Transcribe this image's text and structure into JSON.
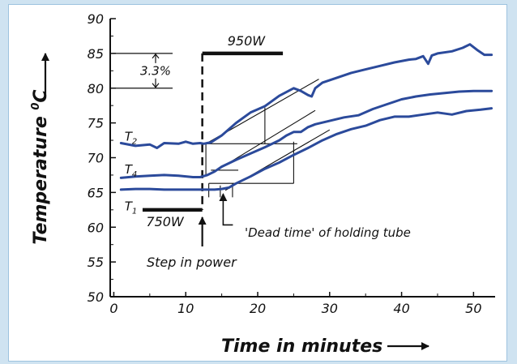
{
  "chart_data": {
    "type": "line",
    "title": "",
    "xlabel": "Time in minutes",
    "ylabel": "Temperature",
    "ylabel_unit": "0C",
    "xlim": [
      -0.5,
      53
    ],
    "ylim": [
      50,
      90
    ],
    "xticks": [
      "0",
      "10",
      "20",
      "30",
      "40",
      "50"
    ],
    "yticks": [
      "50",
      "55",
      "60",
      "65",
      "70",
      "75",
      "80",
      "85",
      "90"
    ],
    "grid": false,
    "series": [
      {
        "name": "T2",
        "label_main": "T",
        "label_sub": "2",
        "color": "#2b4a9b",
        "x": [
          1.0,
          3,
          5,
          6,
          7,
          9,
          10,
          11,
          12,
          12.5,
          13.5,
          15,
          17,
          19,
          21,
          23,
          25,
          26,
          27,
          27.5,
          28,
          29,
          31,
          33,
          35,
          37,
          39,
          41,
          42,
          43,
          43.7,
          44.2,
          45,
          47,
          48.5,
          49.5,
          50.5,
          51.5,
          52.5
        ],
        "y": [
          72.1,
          71.7,
          71.9,
          71.4,
          72.1,
          72.0,
          72.3,
          72.0,
          72.1,
          72.0,
          72.2,
          73.2,
          75.0,
          76.5,
          77.4,
          78.9,
          80.0,
          79.6,
          79.0,
          78.8,
          80.0,
          80.8,
          81.5,
          82.2,
          82.7,
          83.2,
          83.7,
          84.1,
          84.2,
          84.6,
          83.5,
          84.7,
          85.0,
          85.3,
          85.8,
          86.3,
          85.5,
          84.8,
          84.8
        ]
      },
      {
        "name": "T4",
        "label_main": "T",
        "label_sub": "4",
        "color": "#2b4a9b",
        "x": [
          1.0,
          3,
          5,
          7,
          9,
          11,
          12,
          13,
          14,
          15,
          17,
          19,
          21,
          23,
          24,
          25,
          26,
          27,
          28,
          30,
          32,
          34,
          36,
          38,
          40,
          42,
          44,
          46,
          48,
          50,
          52.5
        ],
        "y": [
          67.1,
          67.3,
          67.4,
          67.5,
          67.4,
          67.2,
          67.2,
          67.5,
          68.0,
          68.7,
          69.7,
          70.6,
          71.5,
          72.5,
          73.2,
          73.7,
          73.7,
          74.4,
          74.8,
          75.3,
          75.8,
          76.1,
          77.0,
          77.7,
          78.4,
          78.8,
          79.1,
          79.3,
          79.5,
          79.6,
          79.6
        ]
      },
      {
        "name": "T1",
        "label_main": "T",
        "label_sub": "1",
        "color": "#2b4a9b",
        "x": [
          1.0,
          3,
          5,
          7,
          9,
          11,
          12,
          13,
          14,
          15,
          16,
          17,
          19,
          21,
          23,
          25,
          27,
          29,
          31,
          33,
          35,
          37,
          39,
          41,
          43,
          45,
          47,
          49,
          51,
          52.5
        ],
        "y": [
          65.4,
          65.5,
          65.5,
          65.4,
          65.4,
          65.4,
          65.4,
          65.4,
          65.4,
          65.5,
          65.7,
          66.3,
          67.3,
          68.4,
          69.3,
          70.4,
          71.4,
          72.5,
          73.4,
          74.1,
          74.6,
          75.4,
          75.9,
          75.9,
          76.2,
          76.5,
          76.2,
          76.7,
          76.9,
          77.1
        ]
      }
    ],
    "power_before": "750W",
    "power_after": "950W",
    "step_time_min": 12.3,
    "step_label": "Step in power",
    "dead_time_label": "'Dead time' of holding tube",
    "scale_label": "3.3%",
    "scale_range": [
      80,
      85
    ]
  }
}
